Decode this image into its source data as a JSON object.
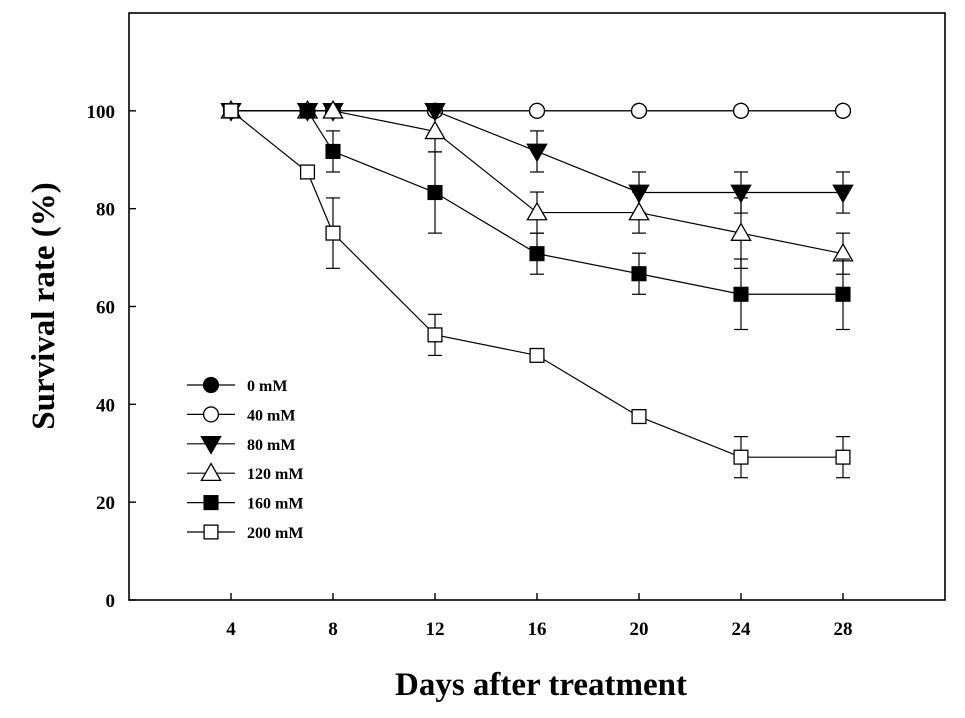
{
  "chart_data": {
    "type": "line",
    "title": "",
    "xlabel": "Days after treatment",
    "ylabel": "Survival rate (%)",
    "xlim": [
      0,
      32
    ],
    "ylim": [
      0,
      120
    ],
    "xticks": [
      4,
      8,
      12,
      16,
      20,
      24,
      28
    ],
    "yticks": [
      0,
      20,
      40,
      60,
      80,
      100
    ],
    "grid": false,
    "legend_position": "lower-left",
    "series": [
      {
        "name": "0 mM",
        "marker": "circle",
        "filled": true,
        "x": [
          4,
          7,
          8,
          12,
          16,
          20,
          24,
          28
        ],
        "y": [
          100,
          100,
          100,
          100,
          100,
          100,
          100,
          100
        ],
        "err": [
          0,
          0,
          0,
          0,
          0,
          0,
          0,
          0
        ]
      },
      {
        "name": "40 mM",
        "marker": "circle",
        "filled": false,
        "x": [
          4,
          7,
          8,
          12,
          16,
          20,
          24,
          28
        ],
        "y": [
          100,
          100,
          100,
          100,
          100,
          100,
          100,
          100
        ],
        "err": [
          0,
          0,
          0,
          0,
          0,
          0,
          0,
          0
        ]
      },
      {
        "name": "80 mM",
        "marker": "triangle-down",
        "filled": true,
        "x": [
          4,
          7,
          8,
          12,
          16,
          20,
          24,
          28
        ],
        "y": [
          100,
          100,
          100,
          100,
          91.7,
          83.3,
          83.3,
          83.3
        ],
        "err": [
          0,
          0,
          0,
          0,
          4.2,
          4.2,
          4.2,
          4.2
        ]
      },
      {
        "name": "120 mM",
        "marker": "triangle-up",
        "filled": false,
        "x": [
          4,
          7,
          8,
          12,
          16,
          20,
          24,
          28
        ],
        "y": [
          100,
          100,
          100,
          95.8,
          79.2,
          79.2,
          75,
          70.8
        ],
        "err": [
          0,
          0,
          0,
          4.2,
          4.2,
          4.2,
          7.2,
          4.2
        ]
      },
      {
        "name": "160 mM",
        "marker": "square",
        "filled": true,
        "x": [
          4,
          7,
          8,
          12,
          16,
          20,
          24,
          28
        ],
        "y": [
          100,
          100,
          91.7,
          83.3,
          70.8,
          66.7,
          62.5,
          62.5
        ],
        "err": [
          0,
          0,
          4.2,
          8.3,
          4.2,
          4.2,
          7.2,
          7.2
        ]
      },
      {
        "name": "200 mM",
        "marker": "square",
        "filled": false,
        "x": [
          4,
          7,
          8,
          12,
          16,
          20,
          24,
          28
        ],
        "y": [
          100,
          87.5,
          75,
          54.2,
          50,
          37.5,
          29.2,
          29.2
        ],
        "err": [
          0,
          0,
          7.2,
          4.2,
          0,
          0,
          4.2,
          4.2
        ]
      }
    ]
  }
}
